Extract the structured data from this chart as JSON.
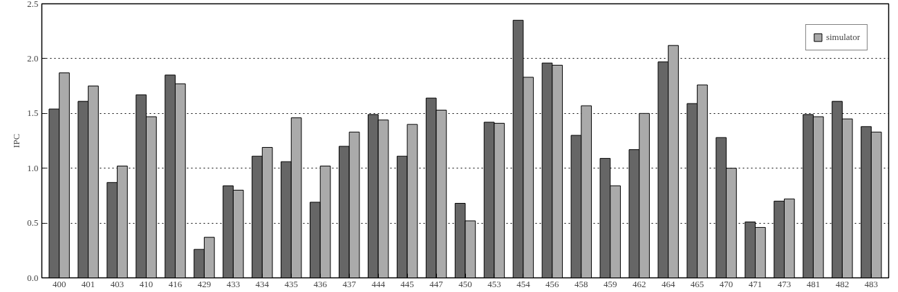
{
  "chart_data": {
    "type": "bar",
    "ylabel": "IPC",
    "categories": [
      "400",
      "401",
      "403",
      "410",
      "416",
      "429",
      "433",
      "434",
      "435",
      "436",
      "437",
      "444",
      "445",
      "447",
      "450",
      "453",
      "454",
      "456",
      "458",
      "459",
      "462",
      "464",
      "465",
      "470",
      "471",
      "473",
      "481",
      "482",
      "483"
    ],
    "series": [
      {
        "color": "#666666",
        "values": [
          1.54,
          1.61,
          0.87,
          1.67,
          1.85,
          0.26,
          0.84,
          1.11,
          1.06,
          0.69,
          1.2,
          1.49,
          1.11,
          1.64,
          0.68,
          1.42,
          2.35,
          1.96,
          1.3,
          1.09,
          1.17,
          1.97,
          1.59,
          1.28,
          0.51,
          0.7,
          1.49,
          1.61,
          1.38
        ]
      },
      {
        "name": "simulator",
        "color": "#aaaaaa",
        "values": [
          1.87,
          1.75,
          1.02,
          1.47,
          1.77,
          0.37,
          0.8,
          1.19,
          1.46,
          1.02,
          1.33,
          1.44,
          1.4,
          1.53,
          0.52,
          1.41,
          1.83,
          1.94,
          1.57,
          0.84,
          1.5,
          2.12,
          1.76,
          1.0,
          0.46,
          0.72,
          1.47,
          1.45,
          1.33
        ]
      }
    ],
    "ylim": [
      0,
      2.5
    ],
    "yticks": [
      {
        "value": 0,
        "label": "0.0"
      },
      {
        "value": 0.5,
        "label": "0.5"
      },
      {
        "value": 1,
        "label": "1.0"
      },
      {
        "value": 1.5,
        "label": "1.5"
      },
      {
        "value": 2,
        "label": "2.0"
      },
      {
        "value": 2.5,
        "label": "2.5"
      }
    ],
    "grid": "y",
    "legend": "top right"
  }
}
